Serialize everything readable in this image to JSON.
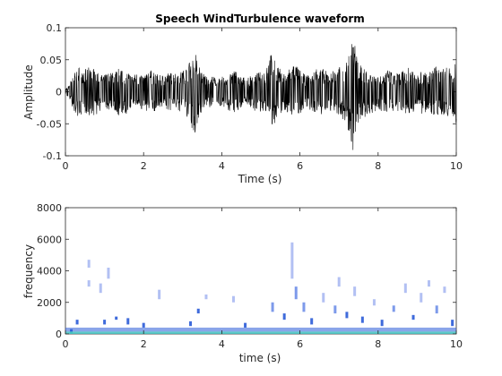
{
  "chart_data": [
    {
      "type": "line",
      "title": "Speech WindTurbulence waveform",
      "xlabel": "Time (s)",
      "ylabel": "Amplitude",
      "xlim": [
        0,
        10
      ],
      "ylim": [
        -0.1,
        0.1
      ],
      "xticks": [
        0,
        2,
        4,
        6,
        8,
        10
      ],
      "yticks": [
        -0.1,
        -0.05,
        0,
        0.05,
        0.1
      ],
      "xtick_labels": [
        "0",
        "2",
        "4",
        "6",
        "8",
        "10"
      ],
      "ytick_labels": [
        "-0.1",
        "-0.05",
        "0",
        "0.05",
        "0.1"
      ],
      "grid": false,
      "line_color": "#000000",
      "series": [
        {
          "x": [
            0,
            0.1,
            0.2,
            0.35,
            0.5,
            0.65,
            0.8,
            0.95,
            1.1,
            1.25,
            1.4,
            1.55,
            1.7,
            1.85,
            2.0,
            2.15,
            2.3,
            2.45,
            2.6,
            2.75,
            2.9,
            3.05,
            3.2,
            3.3,
            3.45,
            3.6,
            3.75,
            3.9,
            4.05,
            4.2,
            4.35,
            4.5,
            4.65,
            4.8,
            4.95,
            5.1,
            5.25,
            5.4,
            5.55,
            5.7,
            5.85,
            6.0,
            6.15,
            6.3,
            6.45,
            6.6,
            6.75,
            6.9,
            7.05,
            7.2,
            7.35,
            7.5,
            7.65,
            7.8,
            7.95,
            8.1,
            8.25,
            8.4,
            8.55,
            8.7,
            8.85,
            9.0,
            9.15,
            9.3,
            9.45,
            9.6,
            9.75,
            9.9,
            10.0
          ],
          "envelope": [
            0.005,
            0.01,
            0.03,
            0.04,
            0.035,
            0.04,
            0.035,
            0.025,
            0.03,
            0.03,
            0.04,
            0.035,
            0.025,
            0.03,
            0.025,
            0.035,
            0.03,
            0.025,
            0.03,
            0.03,
            0.03,
            0.035,
            0.05,
            0.07,
            0.035,
            0.025,
            0.025,
            0.02,
            0.025,
            0.03,
            0.035,
            0.025,
            0.02,
            0.03,
            0.03,
            0.035,
            0.06,
            0.045,
            0.03,
            0.035,
            0.045,
            0.035,
            0.025,
            0.03,
            0.04,
            0.035,
            0.03,
            0.035,
            0.04,
            0.05,
            0.095,
            0.045,
            0.04,
            0.035,
            0.03,
            0.03,
            0.035,
            0.03,
            0.03,
            0.035,
            0.04,
            0.03,
            0.035,
            0.03,
            0.04,
            0.035,
            0.04,
            0.035,
            0.05
          ]
        }
      ]
    },
    {
      "type": "heatmap",
      "title": "",
      "xlabel": "time (s)",
      "ylabel": "frequency",
      "xlim": [
        0,
        10
      ],
      "ylim": [
        0,
        8000
      ],
      "xticks": [
        0,
        2,
        4,
        6,
        8,
        10
      ],
      "yticks": [
        0,
        2000,
        4000,
        6000,
        8000
      ],
      "xtick_labels": [
        "0",
        "2",
        "4",
        "6",
        "8",
        "10"
      ],
      "ytick_labels": [
        "0",
        "2000",
        "4000",
        "6000",
        "8000"
      ],
      "grid": false,
      "colors": {
        "low": "#2a5bd7",
        "mid": "#6f8fe8",
        "faint": "#aab9f2",
        "base": "#3fc1c0"
      },
      "cells": [
        [
          0.15,
          0,
          150,
          "base"
        ],
        [
          0.15,
          150,
          300,
          "low"
        ],
        [
          0.3,
          600,
          900,
          "low"
        ],
        [
          0.6,
          4200,
          4700,
          "faint"
        ],
        [
          0.6,
          3000,
          3400,
          "faint"
        ],
        [
          0.9,
          2600,
          3200,
          "faint"
        ],
        [
          1.1,
          3500,
          4200,
          "faint"
        ],
        [
          1.0,
          600,
          900,
          "low"
        ],
        [
          1.3,
          900,
          1100,
          "low"
        ],
        [
          1.6,
          600,
          1000,
          "low"
        ],
        [
          2.0,
          400,
          700,
          "low"
        ],
        [
          2.4,
          2200,
          2800,
          "faint"
        ],
        [
          3.2,
          500,
          800,
          "low"
        ],
        [
          3.4,
          1300,
          1600,
          "low"
        ],
        [
          3.6,
          2200,
          2500,
          "faint"
        ],
        [
          4.3,
          2000,
          2400,
          "faint"
        ],
        [
          4.6,
          400,
          700,
          "low"
        ],
        [
          5.3,
          1400,
          2000,
          "mid"
        ],
        [
          5.6,
          900,
          1300,
          "low"
        ],
        [
          5.8,
          3500,
          5800,
          "faint"
        ],
        [
          5.9,
          2200,
          3000,
          "mid"
        ],
        [
          6.1,
          1400,
          2000,
          "mid"
        ],
        [
          6.3,
          600,
          1000,
          "low"
        ],
        [
          6.6,
          2000,
          2600,
          "faint"
        ],
        [
          6.9,
          1300,
          1800,
          "mid"
        ],
        [
          7.0,
          3000,
          3600,
          "faint"
        ],
        [
          7.2,
          1000,
          1400,
          "low"
        ],
        [
          7.4,
          2400,
          3000,
          "faint"
        ],
        [
          7.6,
          700,
          1100,
          "low"
        ],
        [
          7.9,
          1800,
          2200,
          "faint"
        ],
        [
          8.1,
          500,
          900,
          "low"
        ],
        [
          8.4,
          1400,
          1800,
          "mid"
        ],
        [
          8.7,
          2600,
          3200,
          "faint"
        ],
        [
          8.9,
          900,
          1200,
          "low"
        ],
        [
          9.1,
          2000,
          2600,
          "faint"
        ],
        [
          9.3,
          3000,
          3400,
          "faint"
        ],
        [
          9.5,
          1300,
          1800,
          "mid"
        ],
        [
          9.7,
          2600,
          3000,
          "faint"
        ],
        [
          9.9,
          500,
          900,
          "low"
        ]
      ]
    }
  ]
}
